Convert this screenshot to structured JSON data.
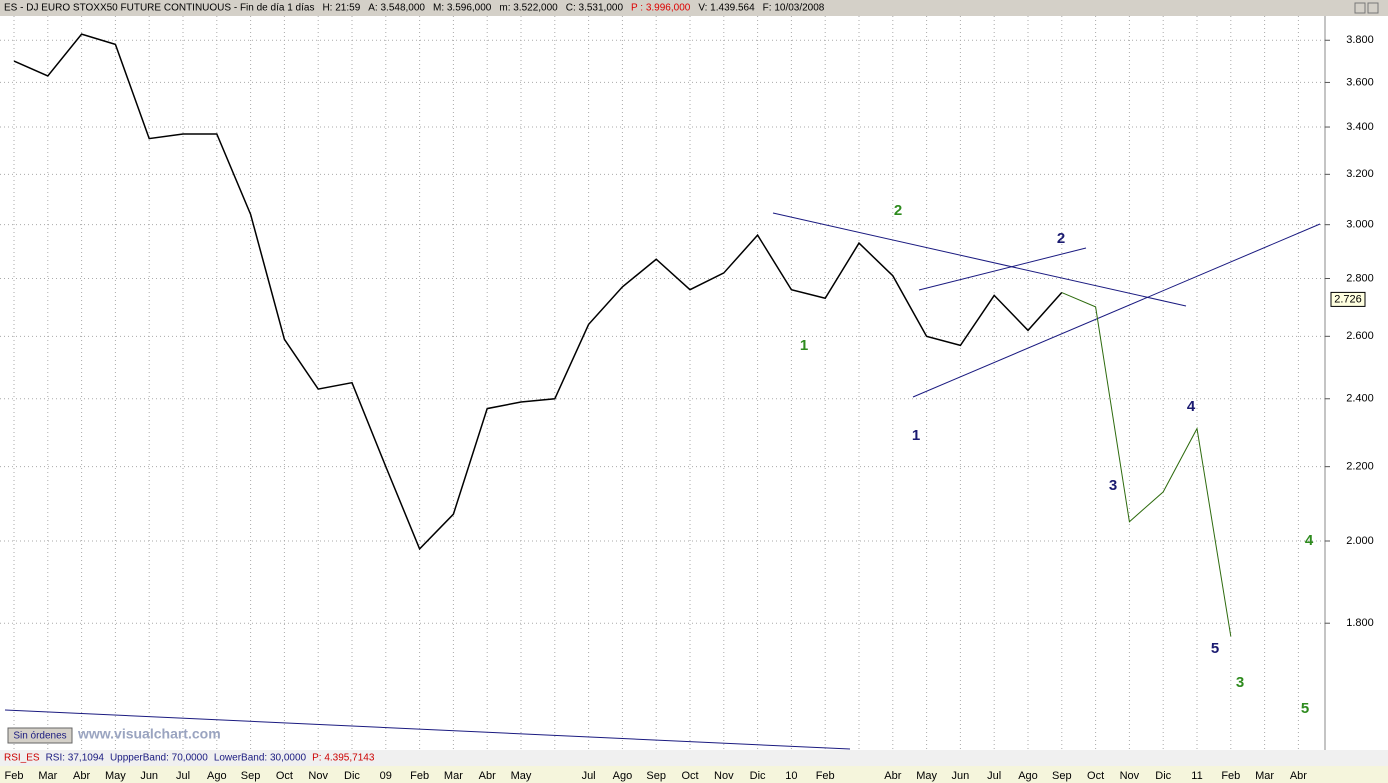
{
  "header": {
    "symbol": "ES - DJ EURO STOXX50 FUTURE CONTINUOUS - Fin de día 1 días",
    "fields": [
      "H: 21:59",
      "A: 3.548,000",
      "M: 3.596,000",
      "m: 3.522,000",
      "C: 3.531,000",
      "P : 3.996,000",
      "V: 1.439.564",
      "F: 10/03/2008"
    ]
  },
  "chart_data": {
    "type": "line",
    "log_scale": true,
    "grid": true,
    "categories": [
      "Feb",
      "Mar",
      "Abr",
      "May",
      "Jun",
      "Jul",
      "Ago",
      "Sep",
      "Oct",
      "Nov",
      "Dic",
      "09",
      "Feb",
      "Mar",
      "Abr",
      "May",
      null,
      "Jul",
      "Ago",
      "Sep",
      "Oct",
      "Nov",
      "Dic",
      "10",
      "Feb",
      null,
      "Abr",
      "May",
      "Jun",
      "Jul",
      "Ago",
      "Sep",
      "Oct",
      "Nov",
      "Dic",
      "11",
      "Feb",
      "Mar",
      "Abr"
    ],
    "series": [
      {
        "color": "#000000",
        "values": [
          3700,
          3630,
          3830,
          3780,
          3350,
          3370,
          3370,
          3040,
          2590,
          2430,
          2450,
          2200,
          1980,
          2070,
          2370,
          2390,
          2400,
          2640,
          2770,
          2870,
          2760,
          2820,
          2960,
          2760,
          2730,
          2930,
          2810,
          2600,
          2570,
          2740,
          2620,
          2750,
          null,
          null,
          null,
          null,
          null,
          null,
          null
        ]
      },
      {
        "color": "#2e6b0e",
        "values": [
          null,
          null,
          null,
          null,
          null,
          null,
          null,
          null,
          null,
          null,
          null,
          null,
          null,
          null,
          null,
          null,
          null,
          null,
          null,
          null,
          null,
          null,
          null,
          null,
          null,
          null,
          null,
          null,
          null,
          null,
          null,
          2750,
          2700,
          2050,
          2130,
          2310,
          1770,
          null,
          null
        ]
      }
    ],
    "ylim": [
      1530,
      3920
    ],
    "yticks": [
      {
        "value": 1800,
        "label": "1.800"
      },
      {
        "value": 2000,
        "label": "2.000"
      },
      {
        "value": 2200,
        "label": "2.200"
      },
      {
        "value": 2400,
        "label": "2.400"
      },
      {
        "value": 2600,
        "label": "2.600"
      },
      {
        "value": 2800,
        "label": "2.800"
      },
      {
        "value": 3000,
        "label": "3.000"
      },
      {
        "value": 3200,
        "label": "3.200"
      },
      {
        "value": 3400,
        "label": "3.400"
      },
      {
        "value": 3600,
        "label": "3.600"
      },
      {
        "value": 3800,
        "label": "3.800"
      }
    ],
    "last_price": {
      "value": 2726,
      "label": "2.726"
    },
    "annotations": [
      {
        "text": "2",
        "color": "#2e8b1e"
      },
      {
        "text": "1",
        "color": "#2e8b1e"
      },
      {
        "text": "2",
        "color": "#1a1a70"
      },
      {
        "text": "1",
        "color": "#1a1a70"
      },
      {
        "text": "4",
        "color": "#1a1a70"
      },
      {
        "text": "3",
        "color": "#1a1a70"
      },
      {
        "text": "5",
        "color": "#1a1a70"
      },
      {
        "text": "4",
        "color": "#2e8b1e"
      },
      {
        "text": "3",
        "color": "#2e8b1e"
      },
      {
        "text": "5",
        "color": "#2e8b1e"
      }
    ]
  },
  "indicator": {
    "name": "RSI_ES",
    "fields": [
      "RSI: 37,1094",
      "UppperBand: 70,0000",
      "LowerBand: 30,0000",
      "P: 4.395,7143"
    ]
  },
  "button": "Sin órdenes",
  "watermark": "www.visualchart.com"
}
